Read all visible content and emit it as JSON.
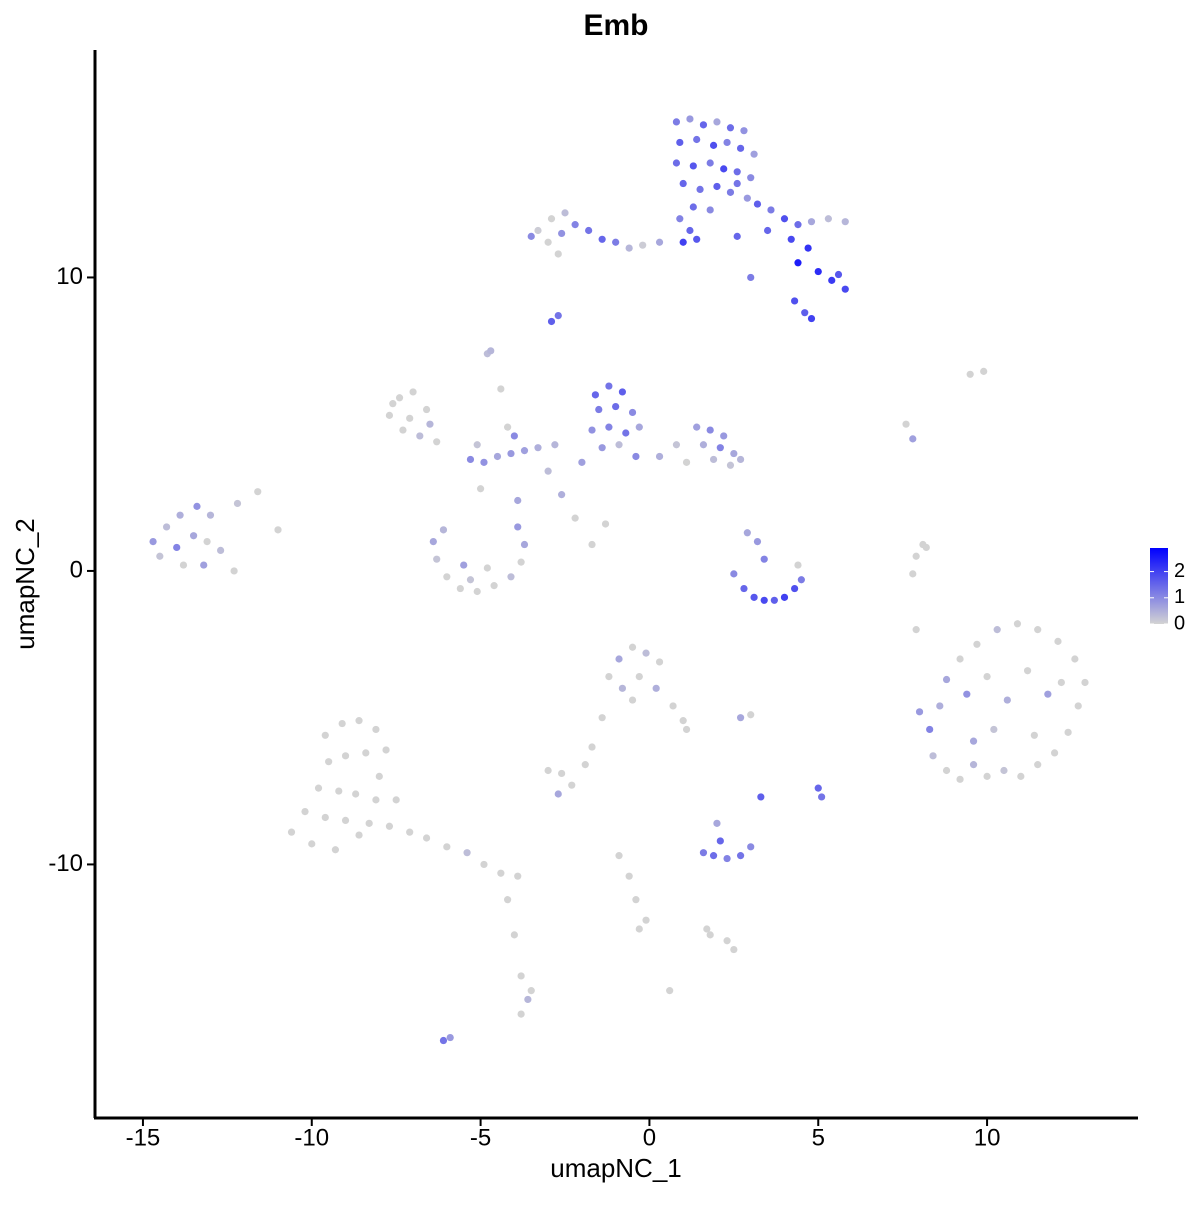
{
  "chart_data": {
    "type": "scatter",
    "title": "Emb",
    "x_label": "umapNC_1",
    "y_label": "umapNC_2",
    "xlim": [
      -16.42,
      14.47
    ],
    "ylim": [
      -18.64,
      17.75
    ],
    "xticks": [
      -15,
      -10,
      -5,
      0,
      5,
      10
    ],
    "yticks": [
      -10,
      0,
      10
    ],
    "grid": false,
    "color_scale": {
      "low": "#d3d3d3",
      "high": "#0000ff",
      "limits": [
        0,
        2.9
      ],
      "ticks": [
        0,
        1,
        2
      ]
    },
    "x": [
      0.8,
      1.2,
      1.6,
      2.0,
      2.4,
      2.8,
      0.9,
      1.4,
      1.9,
      2.3,
      2.7,
      3.1,
      0.8,
      1.3,
      1.8,
      2.2,
      2.6,
      3.0,
      1.0,
      1.5,
      2.0,
      2.4,
      2.9,
      1.3,
      1.8,
      1.2,
      1.0,
      1.4,
      0.9,
      2.6,
      3.2,
      3.6,
      4.0,
      4.4,
      4.8,
      5.3,
      5.8,
      3.5,
      4.2,
      4.7,
      4.4,
      5.0,
      5.4,
      5.8,
      5.6,
      4.3,
      4.6,
      4.8,
      3.0,
      2.6,
      -3.3,
      -2.9,
      -2.5,
      -3.0,
      -2.6,
      -2.2,
      -1.8,
      -1.4,
      -1.0,
      -0.6,
      -0.2,
      0.3,
      -2.7,
      -3.5,
      -2.9,
      -2.7,
      -14.7,
      -14.3,
      -13.9,
      -13.4,
      -13.0,
      -14.5,
      -14.0,
      -13.5,
      -13.1,
      -12.7,
      -13.8,
      -13.2,
      -12.3,
      -11.6,
      -12.2,
      -11.0,
      -7.7,
      -7.4,
      -7.0,
      -6.6,
      -7.3,
      -6.8,
      -6.3,
      -7.6,
      -6.5,
      -7.1,
      -1.6,
      -1.2,
      -0.8,
      -1.5,
      -1.0,
      -0.5,
      -1.7,
      -1.2,
      -0.7,
      -0.3,
      -1.4,
      -0.9,
      -2.0,
      -0.4,
      1.4,
      1.8,
      2.2,
      1.6,
      2.1,
      2.5,
      1.9,
      2.4,
      2.7,
      0.8,
      0.3,
      1.1,
      -5.3,
      -4.9,
      -4.5,
      -4.1,
      -3.7,
      -3.3,
      -2.8,
      -5.1,
      -4.0,
      -3.0,
      -2.6,
      -5.0,
      -4.4,
      -4.8,
      -4.2,
      -3.9,
      -1.3,
      -2.2,
      -1.7,
      -6.4,
      -6.3,
      -6.0,
      -5.6,
      -5.1,
      -4.6,
      -4.1,
      -3.8,
      -3.7,
      -3.9,
      -6.1,
      -5.5,
      -4.8,
      -5.3,
      2.5,
      2.8,
      3.1,
      3.4,
      3.7,
      4.0,
      4.3,
      4.5,
      3.2,
      3.4,
      2.9,
      4.4,
      8.0,
      8.3,
      8.6,
      8.4,
      8.8,
      9.2,
      9.6,
      10.0,
      10.5,
      11.0,
      11.5,
      12.0,
      12.4,
      12.7,
      12.9,
      12.6,
      12.1,
      11.5,
      10.9,
      10.3,
      9.7,
      9.2,
      8.8,
      9.4,
      10.0,
      10.6,
      11.2,
      11.8,
      10.2,
      11.4,
      9.6,
      12.2,
      -1.2,
      -0.9,
      -0.5,
      -0.1,
      0.3,
      -0.8,
      -0.3,
      0.2,
      -0.5,
      0.7,
      1.0,
      1.1,
      -1.4,
      -1.7,
      -1.9,
      -9.6,
      -9.1,
      -8.6,
      -8.1,
      -7.8,
      -9.5,
      -9.0,
      -8.4,
      -8.0,
      -9.8,
      -9.2,
      -8.7,
      -8.1,
      -7.5,
      -10.2,
      -9.6,
      -9.0,
      -8.3,
      -7.7,
      -10.6,
      -10.0,
      -9.3,
      -8.6,
      -7.1,
      -6.6,
      -6.0,
      -5.4,
      -4.9,
      -4.4,
      -3.9,
      -4.2,
      -4.0,
      -3.8,
      -3.6,
      -3.8,
      -3.5,
      1.6,
      1.9,
      2.3,
      2.7,
      3.0,
      2.1,
      2.0,
      1.8,
      2.3,
      2.5,
      1.7,
      -0.9,
      -0.6,
      -0.4,
      -0.1,
      -0.3,
      0.6,
      5.0,
      5.1,
      3.3,
      2.7,
      3.0,
      -3.0,
      -2.6,
      -2.3,
      -2.7,
      7.8,
      7.9,
      8.1,
      7.9,
      8.2,
      9.5,
      9.9,
      7.6,
      7.8,
      -4.7,
      -6.1,
      -5.9
    ],
    "y": [
      15.3,
      15.4,
      15.2,
      15.3,
      15.1,
      15.0,
      14.6,
      14.7,
      14.5,
      14.6,
      14.4,
      14.2,
      13.9,
      13.8,
      13.9,
      13.7,
      13.6,
      13.4,
      13.2,
      13.0,
      13.1,
      12.9,
      12.7,
      12.4,
      12.3,
      11.6,
      11.2,
      11.3,
      12.0,
      13.2,
      12.5,
      12.3,
      12.0,
      11.8,
      11.9,
      12.0,
      11.9,
      11.6,
      11.3,
      11.0,
      10.5,
      10.2,
      9.9,
      9.6,
      10.1,
      9.2,
      8.8,
      8.6,
      10.0,
      11.4,
      11.6,
      12.0,
      12.2,
      11.2,
      11.5,
      11.8,
      11.6,
      11.3,
      11.2,
      11.0,
      11.1,
      11.2,
      10.8,
      11.4,
      8.5,
      8.7,
      1.0,
      1.5,
      1.9,
      2.2,
      1.9,
      0.5,
      0.8,
      1.2,
      1.0,
      0.7,
      0.2,
      0.2,
      0.0,
      2.7,
      2.3,
      1.4,
      5.3,
      5.9,
      6.1,
      5.5,
      4.8,
      4.6,
      4.4,
      5.7,
      5.0,
      5.2,
      6.0,
      6.3,
      6.1,
      5.5,
      5.6,
      5.4,
      4.8,
      4.9,
      4.7,
      4.9,
      4.2,
      4.3,
      3.7,
      3.9,
      4.9,
      4.8,
      4.6,
      4.3,
      4.2,
      4.0,
      3.8,
      3.6,
      3.8,
      4.3,
      3.9,
      3.7,
      3.8,
      3.7,
      3.9,
      4.0,
      4.1,
      4.2,
      4.3,
      4.3,
      4.6,
      3.4,
      2.6,
      2.8,
      6.2,
      7.4,
      4.9,
      2.4,
      1.6,
      1.8,
      0.9,
      1.0,
      0.4,
      -0.2,
      -0.6,
      -0.7,
      -0.5,
      -0.2,
      0.3,
      0.9,
      1.5,
      1.4,
      0.2,
      0.1,
      -0.3,
      -0.1,
      -0.6,
      -0.9,
      -1.0,
      -1.0,
      -0.9,
      -0.6,
      -0.3,
      1.0,
      0.4,
      1.3,
      0.2,
      -4.8,
      -5.4,
      -4.6,
      -6.3,
      -6.8,
      -7.1,
      -6.6,
      -7.0,
      -6.8,
      -7.0,
      -6.6,
      -6.2,
      -5.5,
      -4.6,
      -3.8,
      -3.0,
      -2.4,
      -2.0,
      -1.8,
      -2.0,
      -2.5,
      -3.0,
      -3.7,
      -4.2,
      -3.6,
      -4.4,
      -3.4,
      -4.2,
      -5.4,
      -5.6,
      -5.8,
      -3.8,
      -3.6,
      -3.0,
      -2.6,
      -2.8,
      -3.1,
      -4.0,
      -3.6,
      -4.0,
      -4.4,
      -4.6,
      -5.1,
      -5.4,
      -5.0,
      -6.0,
      -6.6,
      -5.6,
      -5.2,
      -5.1,
      -5.4,
      -6.1,
      -6.5,
      -6.3,
      -6.2,
      -7.0,
      -7.4,
      -7.5,
      -7.6,
      -7.8,
      -7.8,
      -8.2,
      -8.4,
      -8.5,
      -8.6,
      -8.7,
      -8.9,
      -9.3,
      -9.5,
      -9.0,
      -8.9,
      -9.1,
      -9.4,
      -9.6,
      -10.0,
      -10.3,
      -10.4,
      -11.2,
      -12.4,
      -13.8,
      -14.6,
      -15.1,
      -14.3,
      -9.6,
      -9.7,
      -9.8,
      -9.7,
      -9.4,
      -9.2,
      -8.6,
      -12.4,
      -12.6,
      -12.9,
      -12.2,
      -9.7,
      -10.4,
      -11.2,
      -11.9,
      -12.2,
      -14.3,
      -7.4,
      -7.7,
      -7.7,
      -5.0,
      -4.9,
      -6.8,
      -6.9,
      -7.3,
      -7.6,
      -0.1,
      0.5,
      0.9,
      -2.0,
      0.8,
      6.7,
      6.8,
      5.0,
      4.5,
      7.5,
      -16.0,
      -15.9
    ],
    "values": [
      1.2,
      0.8,
      1.5,
      0.6,
      1.4,
      0.9,
      1.6,
      1.3,
      1.8,
      1.1,
      1.5,
      0.7,
      1.4,
      1.7,
      1.2,
      1.9,
      1.4,
      1.0,
      1.5,
      1.3,
      1.6,
      1.2,
      0.8,
      1.4,
      1.0,
      1.5,
      2.0,
      1.7,
      1.1,
      1.3,
      1.6,
      1.2,
      1.8,
      1.4,
      0.6,
      0.3,
      0.4,
      1.5,
      1.9,
      2.2,
      2.5,
      2.3,
      2.1,
      1.9,
      1.7,
      1.8,
      1.6,
      2.0,
      1.2,
      1.5,
      0.1,
      0,
      0.3,
      0,
      0.9,
      1.1,
      1.3,
      1.5,
      1.2,
      0.4,
      0.1,
      0.6,
      0,
      1.0,
      1.6,
      1.3,
      0.8,
      0.3,
      0.5,
      0.9,
      0.4,
      0.2,
      1.1,
      0.6,
      0,
      0.3,
      0,
      0.7,
      0,
      0,
      0.2,
      0,
      0,
      0,
      0,
      0,
      0,
      0.3,
      0,
      0,
      0.4,
      0,
      1.5,
      1.3,
      1.6,
      1.2,
      1.4,
      1.0,
      0.9,
      1.1,
      1.3,
      0.6,
      0.8,
      0.3,
      0.7,
      1.0,
      0.7,
      1.0,
      0.8,
      0.5,
      1.1,
      0.6,
      0.3,
      0.2,
      0.4,
      0.2,
      0.5,
      0,
      1.0,
      0.9,
      0.6,
      0.8,
      0.7,
      0.5,
      0.4,
      0.2,
      1.0,
      0.3,
      0.5,
      0,
      0,
      0.3,
      0,
      0.6,
      0,
      0,
      0,
      0.6,
      0.2,
      0,
      0,
      0,
      0,
      0.3,
      0,
      0.6,
      0.8,
      0.4,
      0.7,
      0,
      0.2,
      1.0,
      1.5,
      1.7,
      1.9,
      1.6,
      2.0,
      1.8,
      1.2,
      0.8,
      1.1,
      0.6,
      0,
      0.8,
      1.1,
      0.5,
      0.3,
      0,
      0,
      0.4,
      0,
      0.2,
      0,
      0,
      0,
      0,
      0,
      0,
      0,
      0,
      0,
      0,
      0.3,
      0,
      0,
      0.6,
      0.9,
      0,
      0.5,
      0,
      0.7,
      0.2,
      0,
      0.6,
      0,
      0,
      0.6,
      0,
      0.3,
      0,
      0.4,
      0,
      0.5,
      0,
      0,
      0,
      0,
      0,
      0,
      0,
      0,
      0,
      0,
      0,
      0,
      0,
      0,
      0,
      0,
      0,
      0,
      0,
      0,
      0,
      0,
      0,
      0,
      0,
      0,
      0,
      0,
      0,
      0,
      0,
      0,
      0,
      0.3,
      0,
      0,
      0,
      0,
      0,
      0,
      0.4,
      0,
      0,
      1.2,
      1.4,
      1.1,
      1.3,
      1.0,
      1.5,
      0.6,
      0,
      0,
      0,
      0,
      0,
      0,
      0,
      0,
      0,
      0,
      1.5,
      1.3,
      1.6,
      0.6,
      0,
      0,
      0,
      0,
      0.6,
      0,
      0,
      0,
      0,
      0,
      0,
      0,
      0,
      0.7,
      0.4,
      1.3,
      0.8
    ]
  }
}
